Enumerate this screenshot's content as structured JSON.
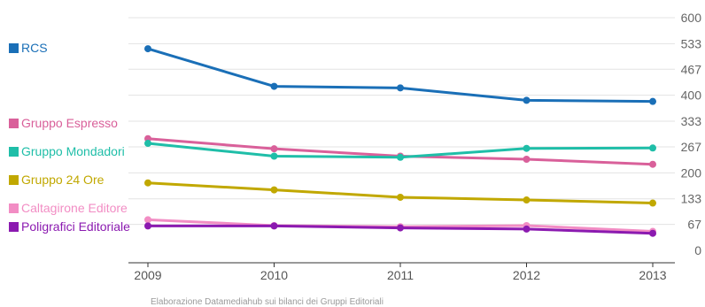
{
  "chart_data": {
    "type": "line",
    "title": "",
    "xlabel": "",
    "ylabel": "",
    "categories": [
      "2009",
      "2010",
      "2011",
      "2012",
      "2013"
    ],
    "ylim": [
      0,
      600
    ],
    "yticks": [
      "0",
      "67",
      "133",
      "200",
      "267",
      "333",
      "400",
      "467",
      "533",
      "600"
    ],
    "ytick_values": [
      0,
      67,
      133,
      200,
      267,
      333,
      400,
      467,
      533,
      600
    ],
    "grid": true,
    "legend_position": "left",
    "series": [
      {
        "name": "RCS",
        "color": "#1a6fb7",
        "values": [
          520,
          423,
          419,
          387,
          384
        ]
      },
      {
        "name": "Gruppo Espresso",
        "color": "#d9609a",
        "values": [
          288,
          262,
          243,
          235,
          222
        ]
      },
      {
        "name": "Gruppo Mondadori",
        "color": "#1fbea8",
        "values": [
          276,
          243,
          240,
          263,
          264
        ]
      },
      {
        "name": "Gruppo 24 Ore",
        "color": "#c1a800",
        "values": [
          174,
          156,
          137,
          130,
          122
        ]
      },
      {
        "name": "Caltagirone Editore",
        "color": "#f28dc4",
        "values": [
          79,
          64,
          61,
          64,
          49
        ]
      },
      {
        "name": "Poligrafici Editoriale",
        "color": "#8b1ab0",
        "values": [
          63,
          63,
          58,
          55,
          44
        ]
      }
    ]
  },
  "footer": {
    "source": "Elaborazione Datamediahub sui bilanci dei Gruppi Editoriali"
  }
}
